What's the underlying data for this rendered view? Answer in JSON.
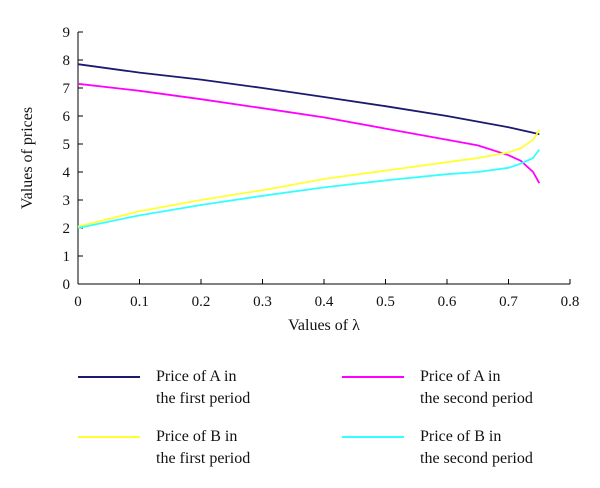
{
  "chart_data": {
    "type": "line",
    "xlabel": "Values of λ",
    "ylabel": "Values of prices",
    "xlim": [
      0,
      0.8
    ],
    "ylim": [
      0,
      9
    ],
    "xticks": [
      "0",
      "0.1",
      "0.2",
      "0.3",
      "0.4",
      "0.5",
      "0.6",
      "0.7",
      "0.8"
    ],
    "yticks": [
      "0",
      "1",
      "2",
      "3",
      "4",
      "5",
      "6",
      "7",
      "8",
      "9"
    ],
    "grid": false,
    "legend_position": "below",
    "series": [
      {
        "name": "Price of A in the first period",
        "color": "#1a1a6e",
        "x": [
          0,
          0.1,
          0.2,
          0.3,
          0.4,
          0.5,
          0.6,
          0.65,
          0.7,
          0.72,
          0.74,
          0.75
        ],
        "y": [
          7.85,
          7.55,
          7.3,
          7.0,
          6.68,
          6.35,
          6.0,
          5.8,
          5.6,
          5.5,
          5.4,
          5.35
        ]
      },
      {
        "name": "Price of A in the second period",
        "color": "#ff00ff",
        "x": [
          0,
          0.1,
          0.2,
          0.3,
          0.4,
          0.5,
          0.6,
          0.65,
          0.7,
          0.72,
          0.74,
          0.75
        ],
        "y": [
          7.15,
          6.9,
          6.6,
          6.28,
          5.95,
          5.55,
          5.15,
          4.95,
          4.6,
          4.4,
          4.0,
          3.6
        ]
      },
      {
        "name": "Price of B in the first period",
        "color": "#ffff33",
        "x": [
          0,
          0.1,
          0.2,
          0.3,
          0.4,
          0.5,
          0.6,
          0.65,
          0.7,
          0.72,
          0.74,
          0.75
        ],
        "y": [
          2.05,
          2.6,
          3.0,
          3.35,
          3.75,
          4.05,
          4.35,
          4.5,
          4.7,
          4.85,
          5.15,
          5.5
        ]
      },
      {
        "name": "Price of B in the second period",
        "color": "#33ffff",
        "x": [
          0,
          0.1,
          0.2,
          0.3,
          0.4,
          0.5,
          0.6,
          0.65,
          0.7,
          0.72,
          0.74,
          0.75
        ],
        "y": [
          2.0,
          2.45,
          2.82,
          3.15,
          3.45,
          3.7,
          3.92,
          4.0,
          4.15,
          4.3,
          4.5,
          4.8
        ]
      }
    ]
  },
  "legend": {
    "items": [
      {
        "line1": "Price of A in",
        "line2": "the first period",
        "color": "#1a1a6e"
      },
      {
        "line1": "Price of A in",
        "line2": "the second period",
        "color": "#ff00ff"
      },
      {
        "line1": "Price of B in",
        "line2": "the first period",
        "color": "#ffff33"
      },
      {
        "line1": "Price of B in",
        "line2": "the second period",
        "color": "#33ffff"
      }
    ]
  }
}
